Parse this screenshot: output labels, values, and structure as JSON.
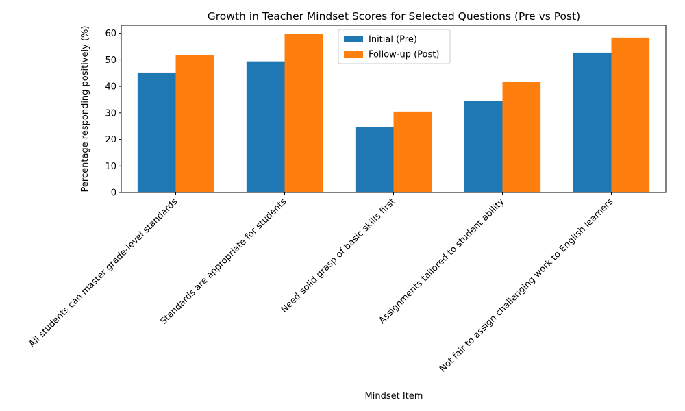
{
  "chart_data": {
    "type": "bar",
    "title": "Growth in Teacher Mindset Scores for Selected Questions (Pre vs Post)",
    "xlabel": "Mindset Item",
    "ylabel": "Percentage responding positively (%)",
    "categories": [
      "All students can master grade-level standards",
      "Standards are appropriate for students",
      "Need solid grasp of basic skills first",
      "Assignments tailored to student ability",
      "Not fair to assign challenging work to English learners"
    ],
    "series": [
      {
        "name": "Initial (Pre)",
        "color": "#1f77b4",
        "values": [
          45.2,
          49.4,
          24.6,
          34.6,
          52.7
        ]
      },
      {
        "name": "Follow-up (Post)",
        "color": "#ff7f0e",
        "values": [
          51.7,
          59.7,
          30.5,
          41.6,
          58.4
        ]
      }
    ],
    "ylim": [
      0,
      63
    ],
    "yticks": [
      0,
      10,
      20,
      30,
      40,
      50,
      60
    ],
    "grid": false,
    "legend_position": "top-center"
  }
}
